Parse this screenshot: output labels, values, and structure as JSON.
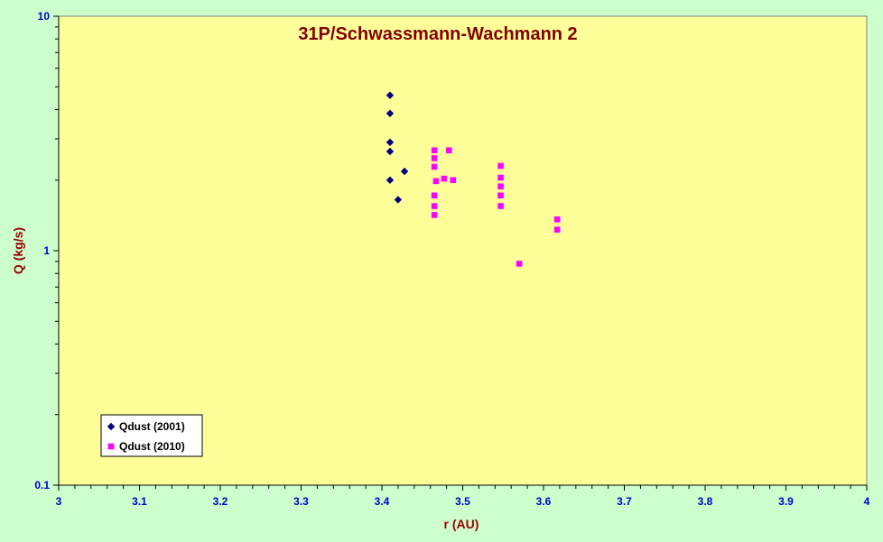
{
  "chart_data": {
    "type": "scatter",
    "title": "31P/Schwassmann-Wachmann 2",
    "xlabel": "r (AU)",
    "ylabel": "Q (kg/s)",
    "xlim": [
      3,
      4
    ],
    "ylim": [
      0.1,
      10
    ],
    "yscale": "log",
    "grid": false,
    "legend_position": "bottom-left",
    "x_ticks": [
      "3",
      "3.1",
      "3.2",
      "3.3",
      "3.4",
      "3.5",
      "3.6",
      "3.7",
      "3.8",
      "3.9",
      "4"
    ],
    "y_ticks": [
      "0.1",
      "1",
      "10"
    ],
    "series": [
      {
        "name": "Qdust (2001)",
        "marker": "diamond",
        "color": "#000080",
        "points": [
          [
            3.41,
            4.6
          ],
          [
            3.41,
            3.85
          ],
          [
            3.41,
            2.9
          ],
          [
            3.41,
            2.65
          ],
          [
            3.41,
            2.0
          ],
          [
            3.428,
            2.18
          ],
          [
            3.42,
            1.65
          ]
        ]
      },
      {
        "name": "Qdust (2010)",
        "marker": "square",
        "color": "#ff00ff",
        "points": [
          [
            3.465,
            2.68
          ],
          [
            3.465,
            2.48
          ],
          [
            3.465,
            2.28
          ],
          [
            3.467,
            1.98
          ],
          [
            3.465,
            1.72
          ],
          [
            3.465,
            1.55
          ],
          [
            3.465,
            1.42
          ],
          [
            3.477,
            2.03
          ],
          [
            3.483,
            2.68
          ],
          [
            3.488,
            2.0
          ],
          [
            3.547,
            2.3
          ],
          [
            3.547,
            2.05
          ],
          [
            3.547,
            1.88
          ],
          [
            3.547,
            1.72
          ],
          [
            3.547,
            1.55
          ],
          [
            3.57,
            0.88
          ],
          [
            3.617,
            1.36
          ],
          [
            3.617,
            1.23
          ]
        ]
      }
    ]
  },
  "colors": {
    "background": "#ccffcc",
    "plot_area": "#ffff99",
    "tick_labels": "#0000cc",
    "axis_titles": "#990000",
    "title": "#800000"
  }
}
